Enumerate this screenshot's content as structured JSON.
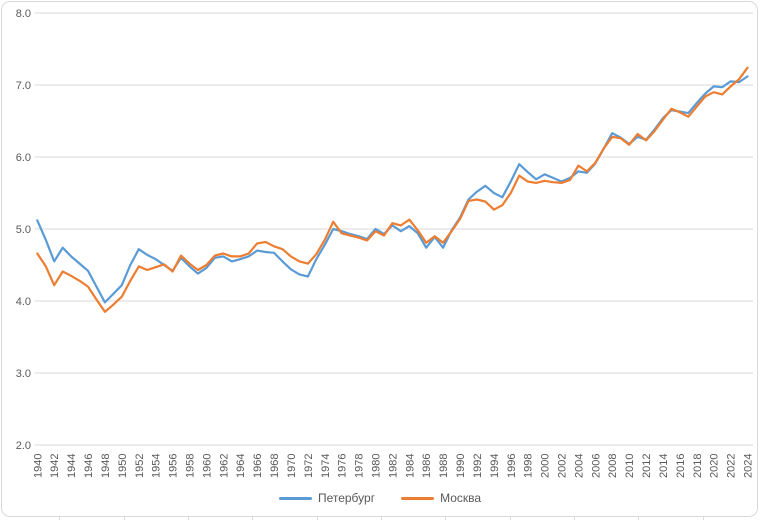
{
  "chart_data": {
    "type": "line",
    "title": "",
    "xlabel": "",
    "ylabel": "",
    "ylim": [
      2.0,
      8.0
    ],
    "ytick_step": 1.0,
    "ytick_labels": [
      "2.0",
      "3.0",
      "4.0",
      "5.0",
      "6.0",
      "7.0",
      "8.0"
    ],
    "xtick_label_every": 2,
    "grid": "horizontal-only",
    "legend_position": "bottom-center",
    "colors": {
      "gridline": "#D9D9D9",
      "chart_border": "#D9D9D9",
      "axis_text": "#595959",
      "background": "#FFFFFF"
    },
    "categories": [
      1940,
      1941,
      1942,
      1943,
      1944,
      1945,
      1946,
      1947,
      1948,
      1949,
      1950,
      1951,
      1952,
      1953,
      1954,
      1955,
      1956,
      1957,
      1958,
      1959,
      1960,
      1961,
      1962,
      1963,
      1964,
      1965,
      1966,
      1967,
      1968,
      1969,
      1970,
      1971,
      1972,
      1973,
      1974,
      1975,
      1976,
      1977,
      1978,
      1979,
      1980,
      1981,
      1982,
      1983,
      1984,
      1985,
      1986,
      1987,
      1988,
      1989,
      1990,
      1991,
      1992,
      1993,
      1994,
      1995,
      1996,
      1997,
      1998,
      1999,
      2000,
      2001,
      2002,
      2003,
      2004,
      2005,
      2006,
      2007,
      2008,
      2009,
      2010,
      2011,
      2012,
      2013,
      2014,
      2015,
      2016,
      2017,
      2018,
      2019,
      2020,
      2021,
      2022,
      2023,
      2024
    ],
    "series": [
      {
        "name": "Петербург",
        "color": "#5B9BD5",
        "values": [
          5.12,
          4.85,
          4.55,
          4.74,
          4.62,
          4.52,
          4.42,
          4.2,
          3.98,
          4.1,
          4.22,
          4.5,
          4.72,
          4.64,
          4.58,
          4.5,
          4.42,
          4.6,
          4.48,
          4.38,
          4.46,
          4.6,
          4.62,
          4.55,
          4.58,
          4.62,
          4.7,
          4.68,
          4.67,
          4.55,
          4.44,
          4.37,
          4.34,
          4.58,
          4.78,
          5.0,
          4.97,
          4.93,
          4.9,
          4.86,
          5.0,
          4.93,
          5.05,
          4.97,
          5.04,
          4.94,
          4.74,
          4.89,
          4.74,
          4.98,
          5.16,
          5.41,
          5.52,
          5.6,
          5.5,
          5.44,
          5.66,
          5.9,
          5.79,
          5.69,
          5.76,
          5.71,
          5.66,
          5.71,
          5.8,
          5.78,
          5.91,
          6.12,
          6.33,
          6.27,
          6.18,
          6.28,
          6.24,
          6.38,
          6.54,
          6.65,
          6.63,
          6.61,
          6.75,
          6.88,
          6.98,
          6.97,
          7.05,
          7.04,
          7.12
        ]
      },
      {
        "name": "Москва",
        "color": "#ED7D31",
        "values": [
          4.66,
          4.48,
          4.22,
          4.41,
          4.35,
          4.28,
          4.2,
          4.02,
          3.85,
          3.95,
          4.06,
          4.28,
          4.48,
          4.43,
          4.47,
          4.51,
          4.41,
          4.63,
          4.52,
          4.43,
          4.5,
          4.63,
          4.66,
          4.62,
          4.62,
          4.66,
          4.8,
          4.82,
          4.76,
          4.72,
          4.62,
          4.55,
          4.52,
          4.65,
          4.85,
          5.1,
          4.94,
          4.91,
          4.88,
          4.84,
          4.97,
          4.91,
          5.08,
          5.05,
          5.13,
          4.98,
          4.81,
          4.9,
          4.81,
          4.97,
          5.14,
          5.39,
          5.41,
          5.38,
          5.27,
          5.33,
          5.5,
          5.74,
          5.66,
          5.64,
          5.67,
          5.65,
          5.64,
          5.68,
          5.88,
          5.8,
          5.92,
          6.12,
          6.28,
          6.26,
          6.17,
          6.32,
          6.23,
          6.36,
          6.52,
          6.67,
          6.62,
          6.56,
          6.7,
          6.84,
          6.9,
          6.87,
          6.98,
          7.08,
          7.24
        ]
      }
    ]
  }
}
